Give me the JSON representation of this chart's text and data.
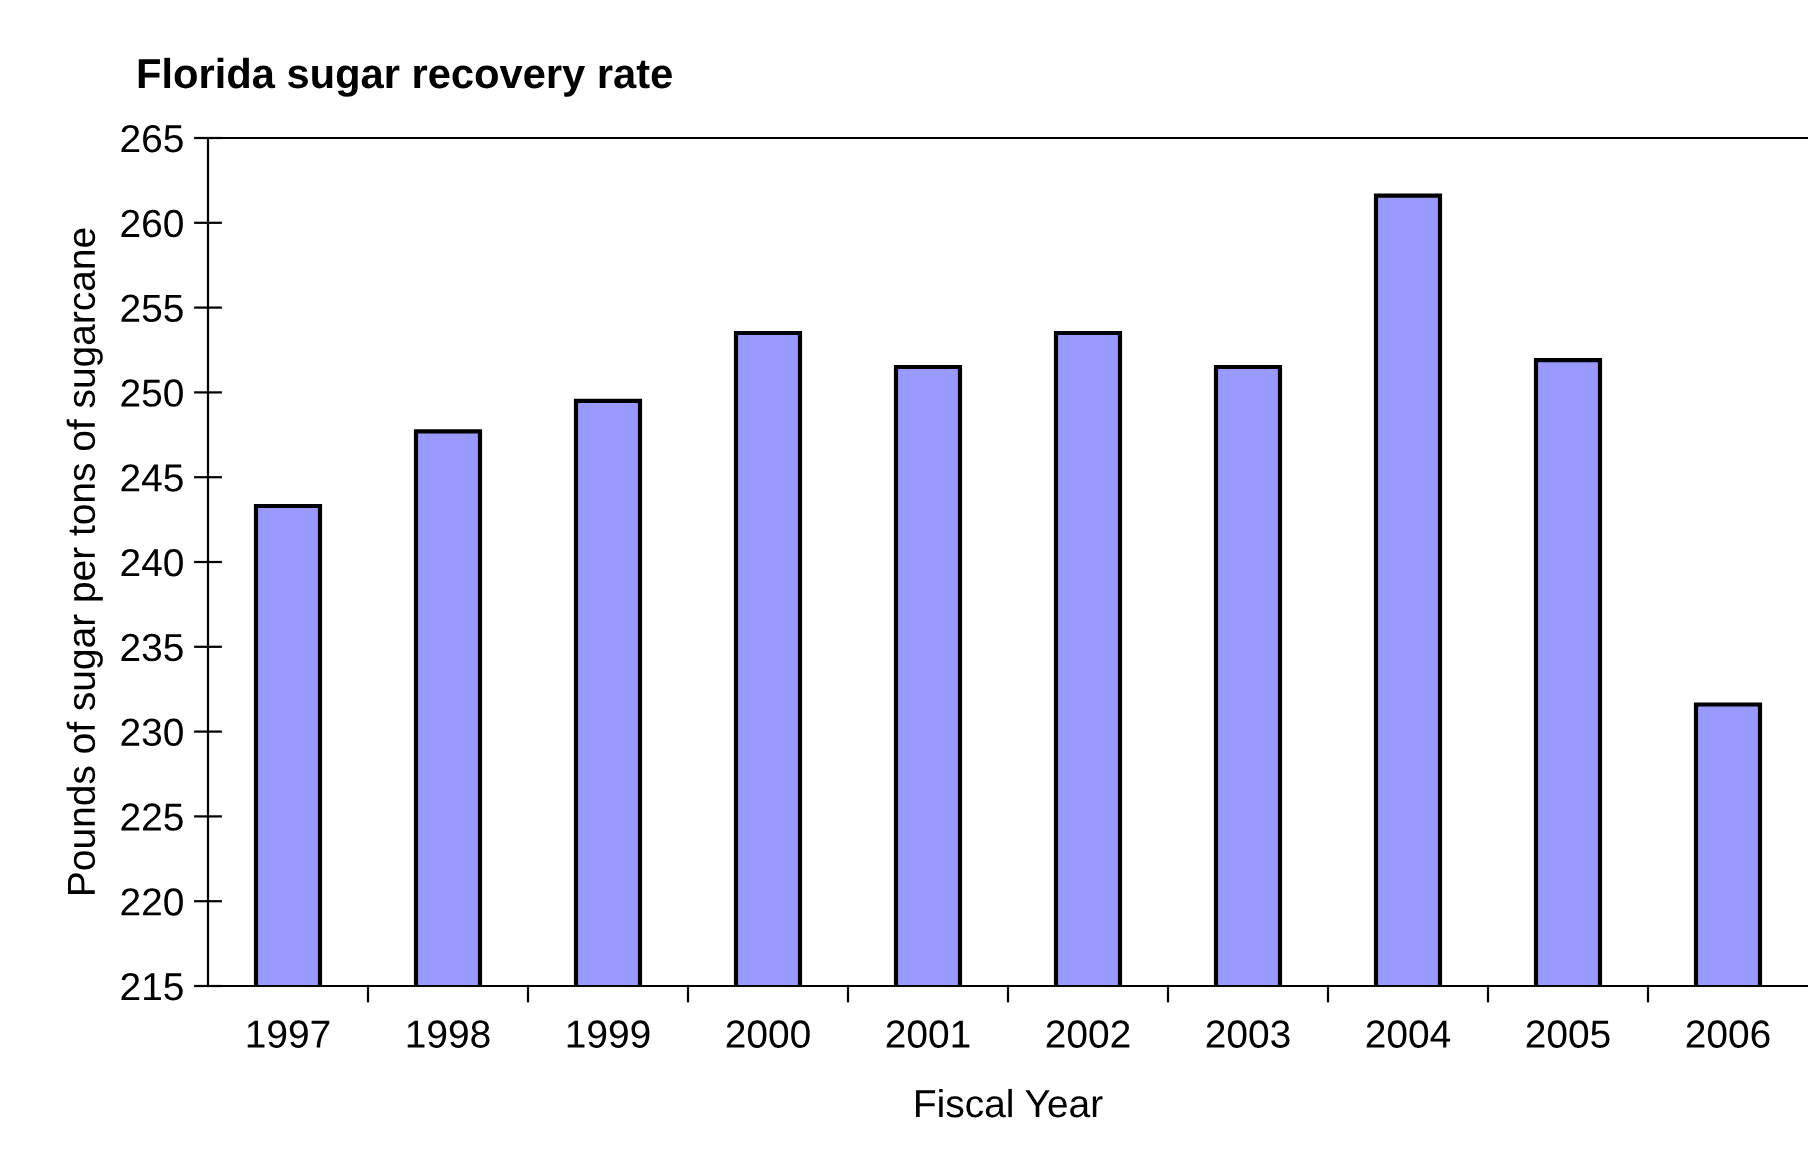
{
  "chart_data": {
    "type": "bar",
    "title": "Florida sugar recovery rate",
    "xlabel": "Fiscal Year",
    "ylabel": "Pounds of sugar per tons of sugarcane",
    "categories": [
      "1997",
      "1998",
      "1999",
      "2000",
      "2001",
      "2002",
      "2003",
      "2004",
      "2005",
      "2006"
    ],
    "values": [
      243.3,
      247.7,
      249.5,
      253.5,
      251.5,
      253.5,
      251.5,
      261.6,
      251.9,
      231.6
    ],
    "color": "#9999ff",
    "ylim": [
      215,
      265
    ],
    "yticks": [
      215,
      220,
      225,
      230,
      235,
      240,
      245,
      250,
      255,
      260,
      265
    ],
    "grid": false,
    "legend": false
  }
}
